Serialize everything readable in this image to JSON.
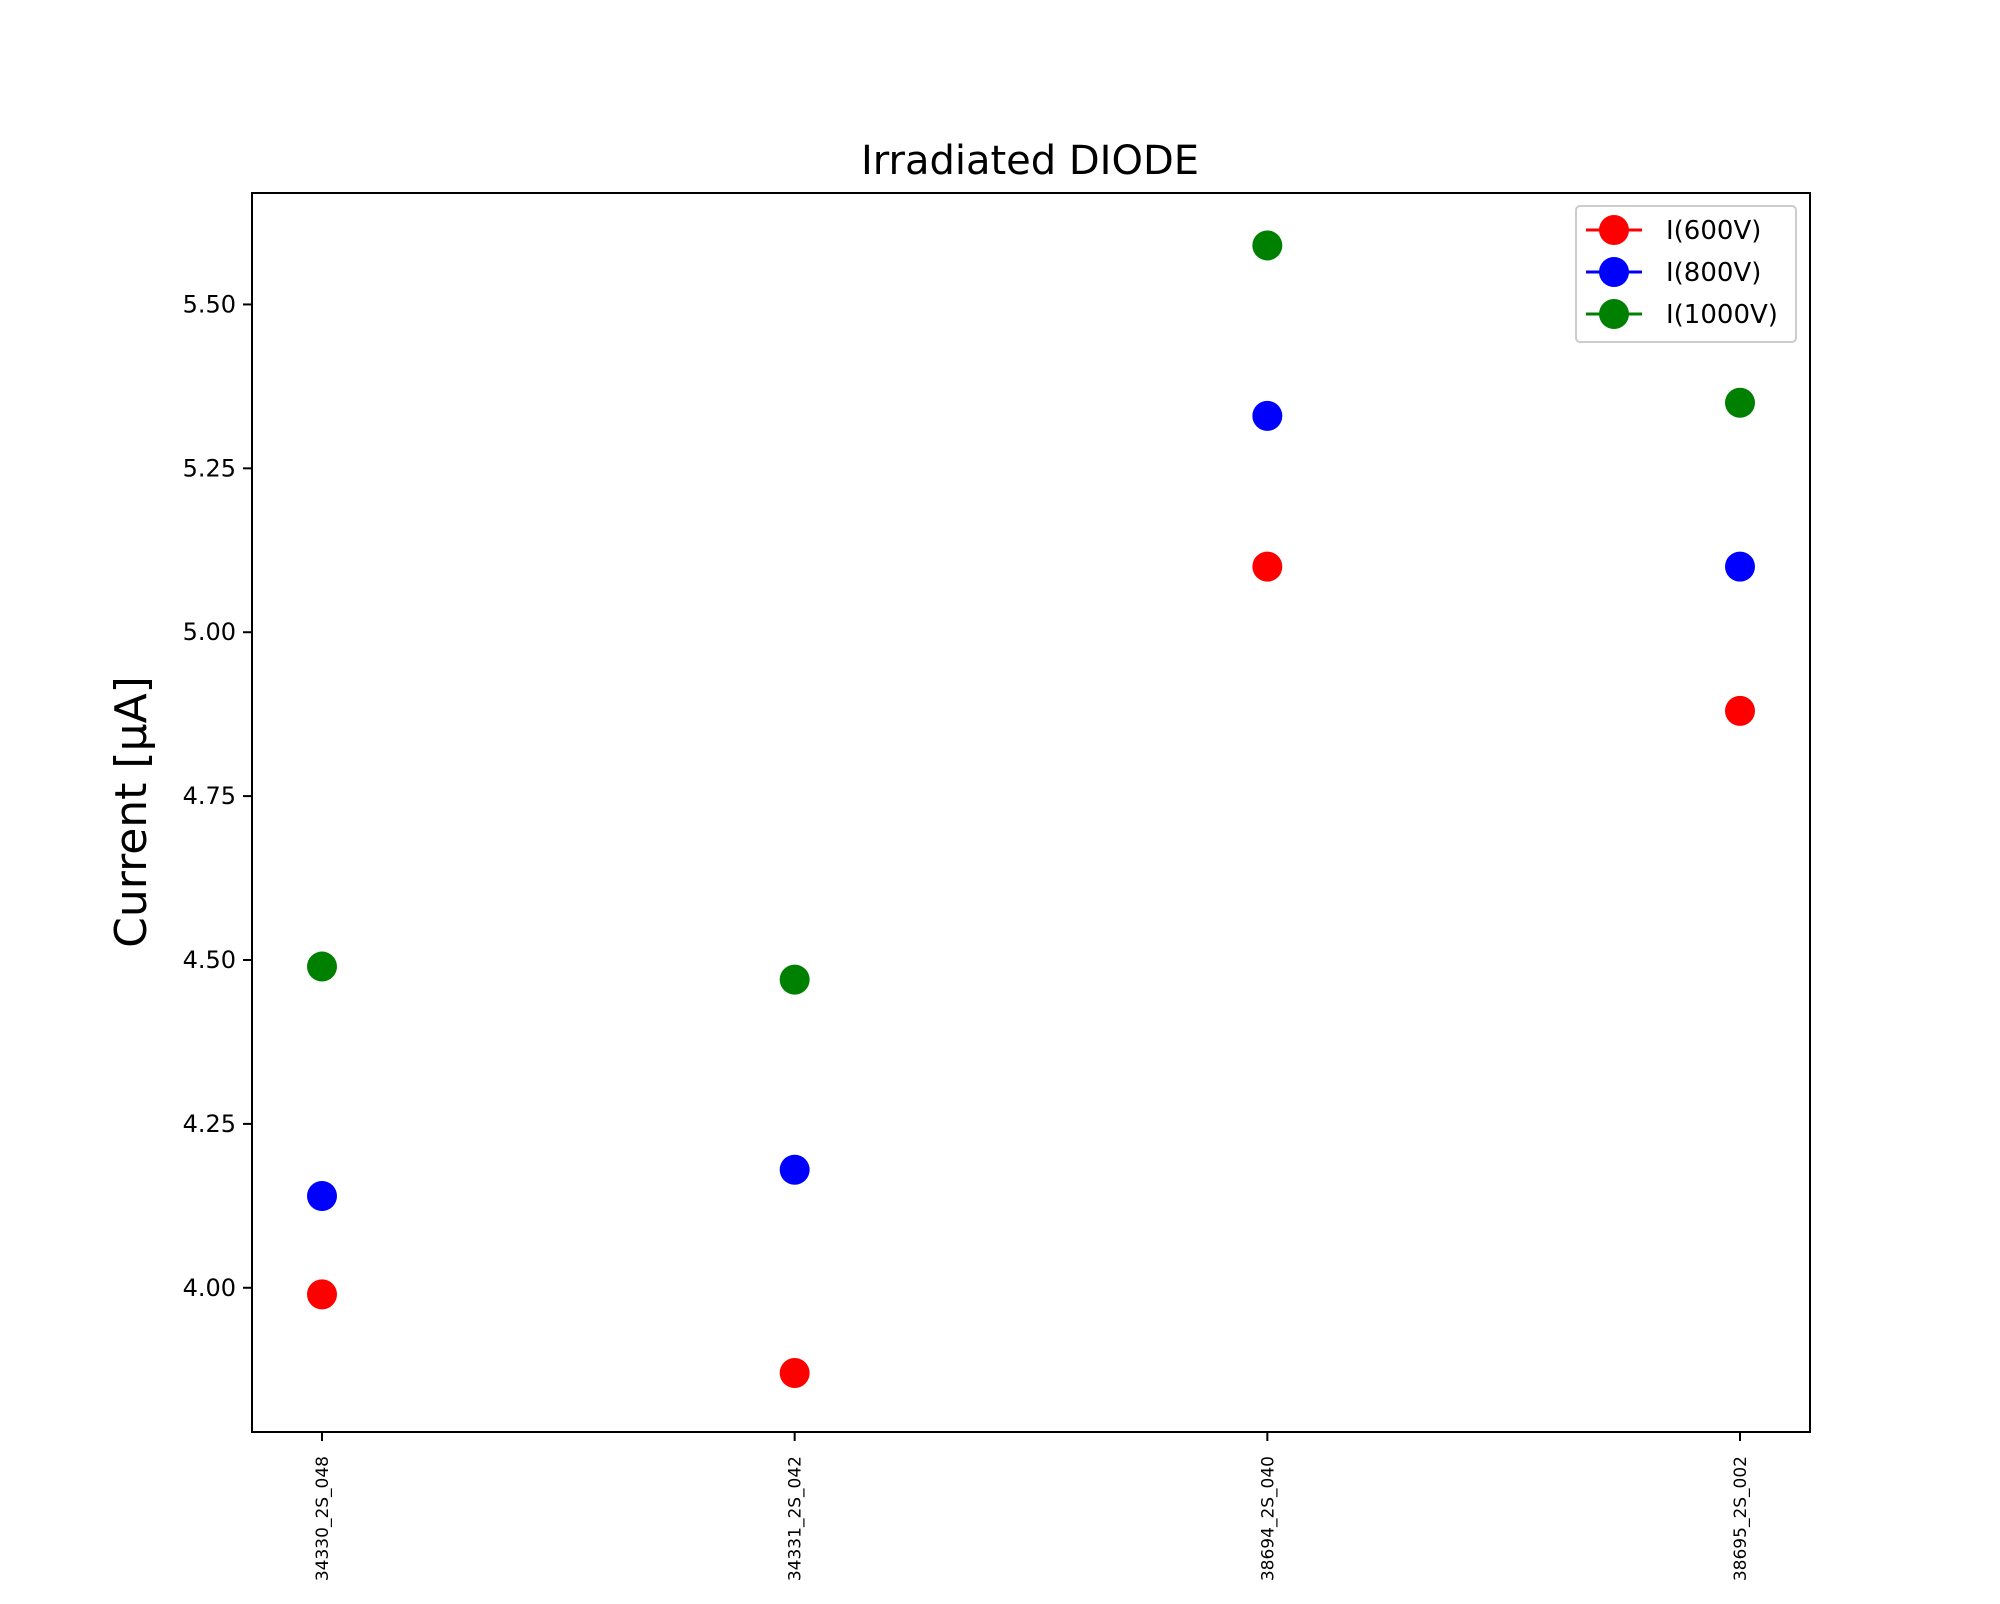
{
  "chart_data": {
    "type": "scatter",
    "title": "Irradiated DIODE",
    "xlabel": "",
    "ylabel": "Current [μA]",
    "categories": [
      "34330_2S_048",
      "34331_2S_042",
      "38694_2S_040",
      "38695_2S_002"
    ],
    "series": [
      {
        "name": "I(600V)",
        "color": "#ff0000",
        "values": [
          3.99,
          3.87,
          5.1,
          4.88
        ]
      },
      {
        "name": "I(800V)",
        "color": "#0000ff",
        "values": [
          4.14,
          4.18,
          5.33,
          5.1
        ]
      },
      {
        "name": "I(1000V)",
        "color": "#008000",
        "values": [
          4.49,
          4.47,
          5.59,
          5.35
        ]
      }
    ],
    "ylim": [
      3.78,
      5.67
    ],
    "yticks": [
      4.0,
      4.25,
      4.5,
      4.75,
      5.0,
      5.25,
      5.5
    ],
    "ytick_labels": [
      "4.00",
      "4.25",
      "4.50",
      "4.75",
      "5.00",
      "5.25",
      "5.50"
    ],
    "grid": false,
    "legend": "top-right",
    "marker": "circle"
  }
}
